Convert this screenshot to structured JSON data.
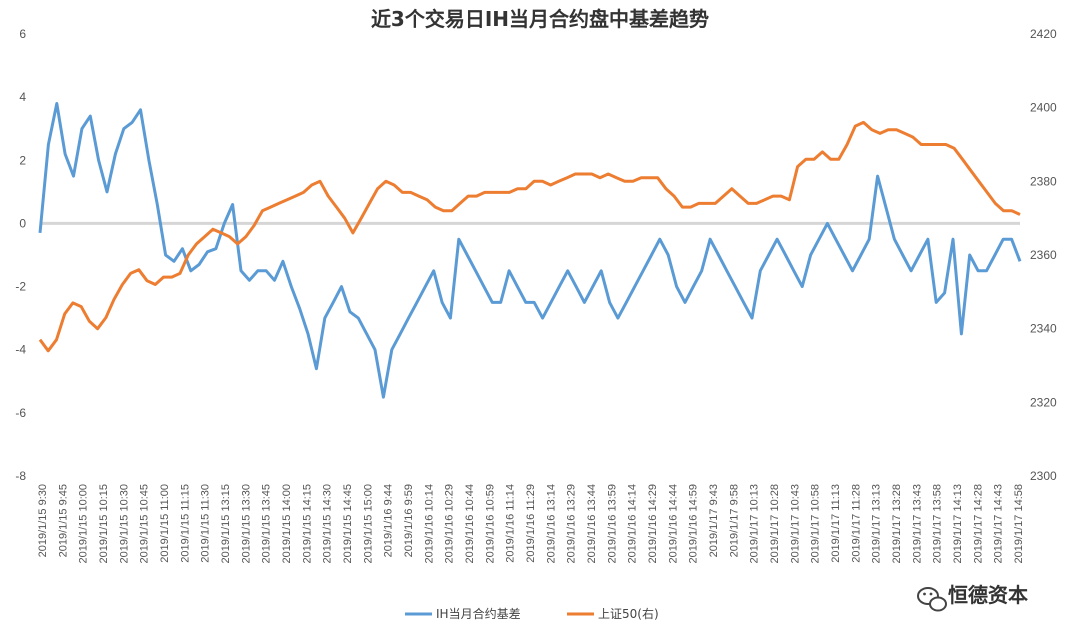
{
  "chart_data": {
    "type": "line",
    "title": "近3个交易日IH当月合约盘中基差趋势",
    "y_left": {
      "min": -8,
      "max": 6,
      "ticks": [
        6,
        4,
        2,
        0,
        -2,
        -4,
        -6,
        -8
      ]
    },
    "y_right": {
      "min": 2300,
      "max": 2420,
      "ticks": [
        2420,
        2400,
        2380,
        2360,
        2340,
        2320,
        2300
      ]
    },
    "zero_line": true,
    "x_tick_labels": [
      "2019/1/15 9:30",
      "2019/1/15 9:45",
      "2019/1/15 10:00",
      "2019/1/15 10:15",
      "2019/1/15 10:30",
      "2019/1/15 10:45",
      "2019/1/15 11:00",
      "2019/1/15 11:15",
      "2019/1/15 11:30",
      "2019/1/15 13:15",
      "2019/1/15 13:30",
      "2019/1/15 13:45",
      "2019/1/15 14:00",
      "2019/1/15 14:15",
      "2019/1/15 14:30",
      "2019/1/15 14:45",
      "2019/1/15 15:00",
      "2019/1/16 9:44",
      "2019/1/16 9:59",
      "2019/1/16 10:14",
      "2019/1/16 10:29",
      "2019/1/16 10:44",
      "2019/1/16 10:59",
      "2019/1/16 11:14",
      "2019/1/16 11:29",
      "2019/1/16 13:14",
      "2019/1/16 13:29",
      "2019/1/16 13:44",
      "2019/1/16 13:59",
      "2019/1/16 14:14",
      "2019/1/16 14:29",
      "2019/1/16 14:44",
      "2019/1/16 14:59",
      "2019/1/17 9:43",
      "2019/1/17 9:58",
      "2019/1/17 10:13",
      "2019/1/17 10:28",
      "2019/1/17 10:43",
      "2019/1/17 10:58",
      "2019/1/17 11:13",
      "2019/1/17 11:28",
      "2019/1/17 13:13",
      "2019/1/17 13:28",
      "2019/1/17 13:43",
      "2019/1/17 13:58",
      "2019/1/17 14:13",
      "2019/1/17 14:28",
      "2019/1/17 14:43",
      "2019/1/17 14:58"
    ],
    "series": [
      {
        "name": "IH当月合约基差",
        "axis": "left",
        "color": "#5B9BD5",
        "values": [
          -0.3,
          2.5,
          3.8,
          2.2,
          1.5,
          3.0,
          3.4,
          2.0,
          1.0,
          2.2,
          3.0,
          3.2,
          3.6,
          2.0,
          0.6,
          -1.0,
          -1.2,
          -0.8,
          -1.5,
          -1.3,
          -0.9,
          -0.8,
          0.0,
          0.6,
          -1.5,
          -1.8,
          -1.5,
          -1.5,
          -1.8,
          -1.2,
          -2.0,
          -2.7,
          -3.5,
          -4.6,
          -3.0,
          -2.5,
          -2.0,
          -2.8,
          -3.0,
          -3.5,
          -4.0,
          -5.5,
          -4.0,
          -3.5,
          -3.0,
          -2.5,
          -2.0,
          -1.5,
          -2.5,
          -3.0,
          -0.5,
          -1.0,
          -1.5,
          -2.0,
          -2.5,
          -2.5,
          -1.5,
          -2.0,
          -2.5,
          -2.5,
          -3.0,
          -2.5,
          -2.0,
          -1.5,
          -2.0,
          -2.5,
          -2.0,
          -1.5,
          -2.5,
          -3.0,
          -2.5,
          -2.0,
          -1.5,
          -1.0,
          -0.5,
          -1.0,
          -2.0,
          -2.5,
          -2.0,
          -1.5,
          -0.5,
          -1.0,
          -1.5,
          -2.0,
          -2.5,
          -3.0,
          -1.5,
          -1.0,
          -0.5,
          -1.0,
          -1.5,
          -2.0,
          -1.0,
          -0.5,
          0.0,
          -0.5,
          -1.0,
          -1.5,
          -1.0,
          -0.5,
          1.5,
          0.5,
          -0.5,
          -1.0,
          -1.5,
          -1.0,
          -0.5,
          -2.5,
          -2.2,
          -0.5,
          -3.5,
          -1.0,
          -1.5,
          -1.5,
          -1.0,
          -0.5,
          -0.5,
          -1.2
        ],
        "note_values": "approximate visual read"
      },
      {
        "name": "上证50(右)",
        "axis": "right",
        "color": "#ED7D31",
        "values": [
          2337,
          2334,
          2337,
          2344,
          2347,
          2346,
          2342,
          2340,
          2343,
          2348,
          2352,
          2355,
          2356,
          2353,
          2352,
          2354,
          2354,
          2355,
          2360,
          2363,
          2365,
          2367,
          2366,
          2365,
          2363,
          2365,
          2368,
          2372,
          2373,
          2374,
          2375,
          2376,
          2377,
          2379,
          2380,
          2376,
          2373,
          2370,
          2366,
          2370,
          2374,
          2378,
          2380,
          2379,
          2377,
          2377,
          2376,
          2375,
          2373,
          2372,
          2372,
          2374,
          2376,
          2376,
          2377,
          2377,
          2377,
          2377,
          2378,
          2378,
          2380,
          2380,
          2379,
          2380,
          2381,
          2382,
          2382,
          2382,
          2381,
          2382,
          2381,
          2380,
          2380,
          2381,
          2381,
          2381,
          2378,
          2376,
          2373,
          2373,
          2374,
          2374,
          2374,
          2376,
          2378,
          2376,
          2374,
          2374,
          2375,
          2376,
          2376,
          2375,
          2384,
          2386,
          2386,
          2388,
          2386,
          2386,
          2390,
          2395,
          2396,
          2394,
          2393,
          2394,
          2394,
          2393,
          2392,
          2390,
          2390,
          2390,
          2390,
          2389,
          2386,
          2383,
          2380,
          2377,
          2374,
          2372,
          2372,
          2371
        ]
      }
    ],
    "legend_position": "bottom"
  },
  "watermark": {
    "text": "恒德资本",
    "icon": "wechat-logo-icon"
  }
}
